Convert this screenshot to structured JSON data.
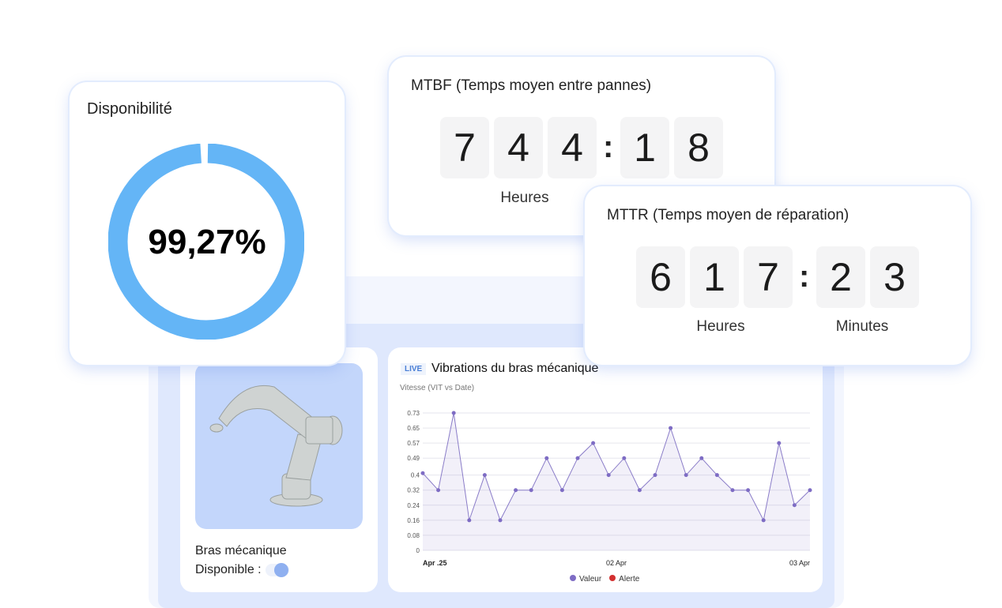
{
  "availability": {
    "title": "Disponibilité",
    "value_label": "99,27%",
    "percent": 99.27,
    "color": "#64b5f6"
  },
  "mtbf": {
    "title": "MTBF (Temps moyen entre pannes)",
    "digits": [
      "7",
      "4",
      "4",
      "1",
      "8"
    ],
    "separator": ":",
    "units": [
      "Heures"
    ]
  },
  "mttr": {
    "title": "MTTR (Temps moyen de réparation)",
    "digits": [
      "6",
      "1",
      "7",
      "2",
      "3"
    ],
    "separator": ":",
    "units": [
      "Heures",
      "Minutes"
    ]
  },
  "machine": {
    "name": "Bras mécanique",
    "status_label": "Disponible :",
    "available": true
  },
  "chart_card": {
    "badge": "LIVE",
    "title": "Vibrations du bras mécanique"
  },
  "chart_data": {
    "type": "area",
    "subtitle": "Vitesse (VIT vs Date)",
    "yticks": [
      "0",
      "0.08",
      "0.16",
      "0.24",
      "0.32",
      "0.4",
      "0.49",
      "0.57",
      "0.65",
      "0.73"
    ],
    "ylim": [
      0,
      0.73
    ],
    "xticks": [
      "Apr .25",
      "02 Apr",
      "03 Apr"
    ],
    "grid": true,
    "legend_position": "bottom",
    "series": [
      {
        "name": "Valeur",
        "color": "#7e6cc4",
        "values": [
          0.41,
          0.32,
          0.73,
          0.16,
          0.4,
          0.16,
          0.32,
          0.32,
          0.49,
          0.32,
          0.49,
          0.57,
          0.4,
          0.49,
          0.32,
          0.4,
          0.65,
          0.4,
          0.49,
          0.4,
          0.32,
          0.32,
          0.16,
          0.57,
          0.24,
          0.32
        ]
      },
      {
        "name": "Alerte",
        "color": "#d32f2f",
        "values": []
      }
    ]
  }
}
